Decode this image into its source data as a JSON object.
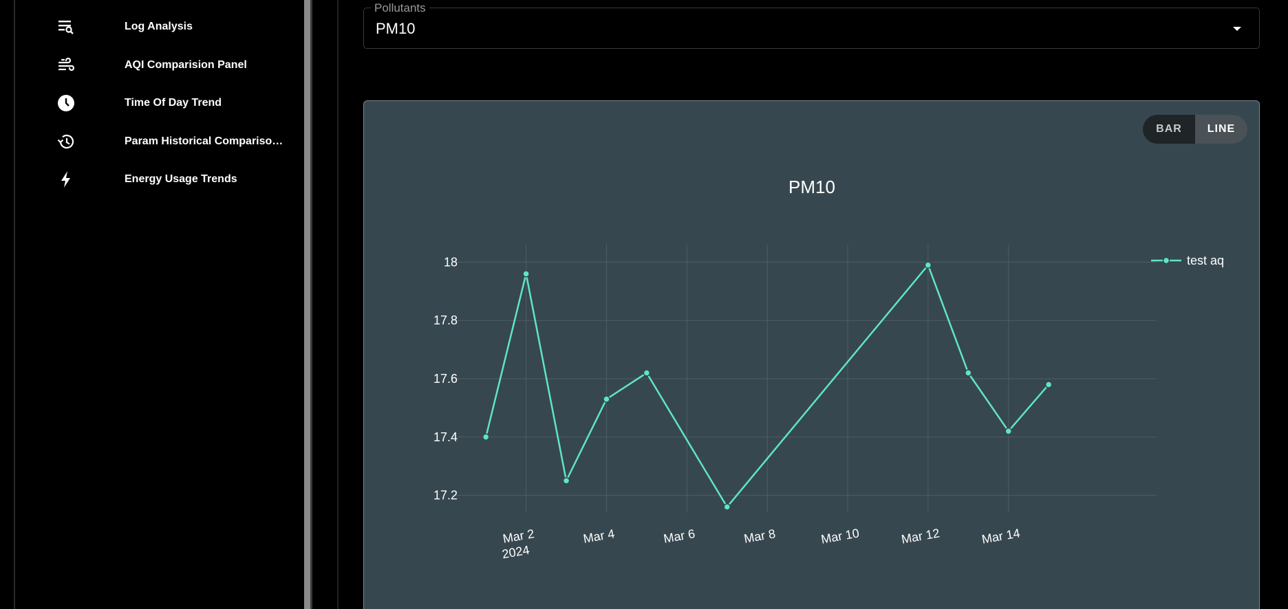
{
  "sidebar": {
    "items": [
      {
        "label": "Log Analysis",
        "icon": "log-search-icon"
      },
      {
        "label": "AQI Comparision Panel",
        "icon": "air-icon"
      },
      {
        "label": "Time Of Day Trend",
        "icon": "clock-icon"
      },
      {
        "label": "Param Historical Compariso…",
        "icon": "history-icon"
      },
      {
        "label": "Energy Usage Trends",
        "icon": "bolt-icon"
      }
    ]
  },
  "pollutant_select": {
    "legend": "Pollutants",
    "value": "PM10"
  },
  "chart_toggle": {
    "bar_label": "BAR",
    "line_label": "LINE",
    "selected": "LINE"
  },
  "colors": {
    "series": "#5ee6c6",
    "card_bg": "#37474f"
  },
  "chart_data": {
    "type": "line",
    "title": "PM10",
    "series": [
      {
        "name": "test aq",
        "x": [
          "2024-03-01",
          "2024-03-02",
          "2024-03-03",
          "2024-03-04",
          "2024-03-05",
          "2024-03-07",
          "2024-03-12",
          "2024-03-13",
          "2024-03-14",
          "2024-03-15"
        ],
        "y": [
          17.4,
          17.96,
          17.25,
          17.53,
          17.62,
          17.16,
          17.99,
          17.62,
          17.42,
          17.58
        ]
      }
    ],
    "x_ticks": [
      "Mar 2\n2024",
      "Mar 4",
      "Mar 6",
      "Mar 8",
      "Mar 10",
      "Mar 12",
      "Mar 14"
    ],
    "y_ticks": [
      "17.2",
      "17.4",
      "17.6",
      "17.8",
      "18"
    ],
    "ylim": [
      17.14,
      18.06
    ],
    "grid": true,
    "legend": "top-right"
  }
}
